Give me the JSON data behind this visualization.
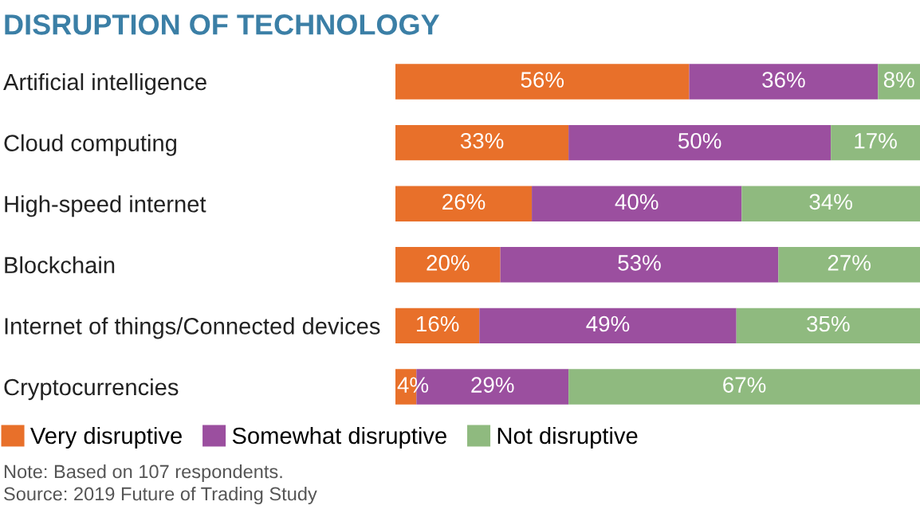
{
  "chart_data": {
    "type": "bar",
    "orientation": "horizontal",
    "stacked": true,
    "title": "DISRUPTION OF TECHNOLOGY",
    "categories": [
      "Artificial intelligence",
      "Cloud computing",
      "High-speed internet",
      "Blockchain",
      "Internet of things/Connected devices",
      "Cryptocurrencies"
    ],
    "series": [
      {
        "name": "Very disruptive",
        "color": "#e8702a",
        "values": [
          56,
          33,
          26,
          20,
          16,
          4
        ],
        "value_labels": [
          "56%",
          "33%",
          "26%",
          "20%",
          "16%",
          "4%"
        ]
      },
      {
        "name": "Somewhat disruptive",
        "color": "#9b4f9f",
        "values": [
          36,
          50,
          40,
          53,
          49,
          29
        ],
        "value_labels": [
          "36%",
          "50%",
          "40%",
          "53%",
          "49%",
          "29%"
        ]
      },
      {
        "name": "Not disruptive",
        "color": "#8fba7f",
        "values": [
          8,
          17,
          34,
          27,
          35,
          67
        ],
        "value_labels": [
          "8%",
          "17%",
          "34%",
          "27%",
          "35%",
          "67%"
        ]
      }
    ],
    "legend": "bottom",
    "tick_labels": "y",
    "grid": false,
    "annotations": [
      "Note: Based on 107 respondents.",
      "Source: 2019 Future of Trading Study"
    ]
  }
}
